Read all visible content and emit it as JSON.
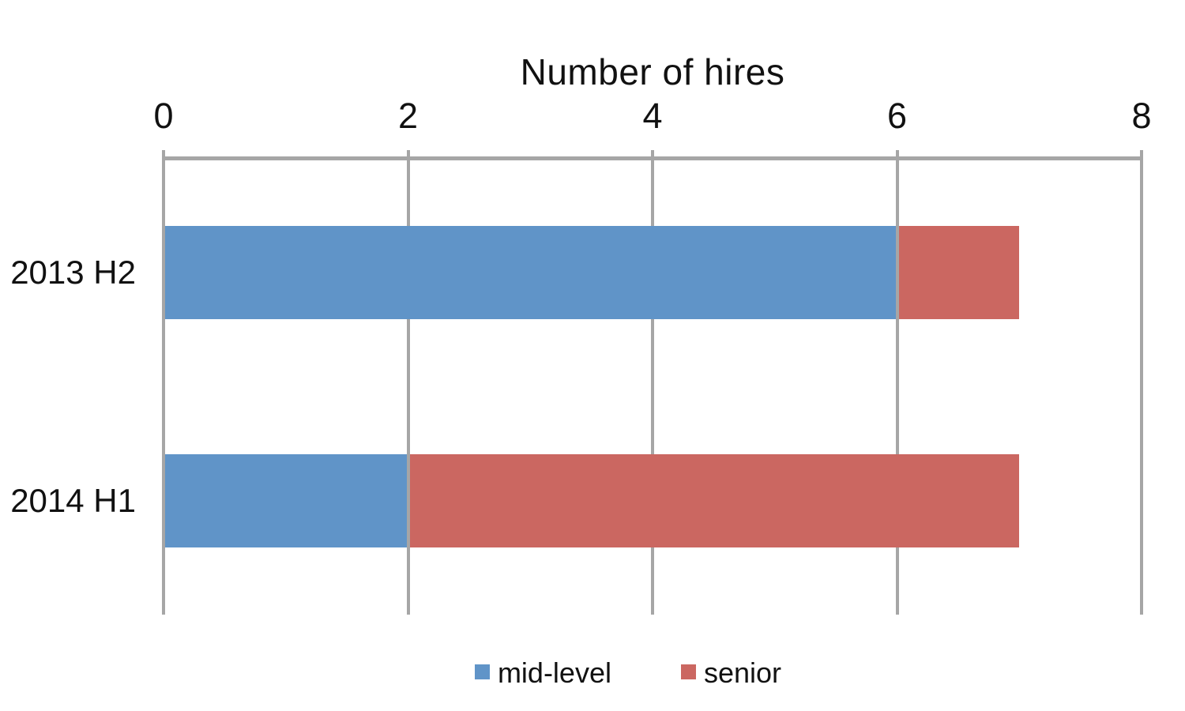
{
  "chart_data": {
    "type": "bar",
    "orientation": "horizontal",
    "stacked": true,
    "title": "Number of hires",
    "categories": [
      "2013 H2",
      "2014 H1"
    ],
    "series": [
      {
        "name": "mid-level",
        "color": "#6094C8",
        "values": [
          6,
          2
        ]
      },
      {
        "name": "senior",
        "color": "#CB6761",
        "values": [
          1,
          5
        ]
      }
    ],
    "xlim": [
      0,
      8
    ],
    "xticks": [
      0,
      2,
      4,
      6,
      8
    ],
    "axis_position": "top",
    "grid": true,
    "grid_color": "#A6A6A6",
    "legend_position": "bottom",
    "text_color": "#111111"
  }
}
